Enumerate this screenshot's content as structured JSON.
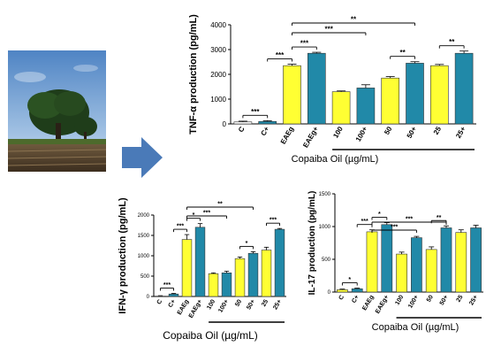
{
  "colors": {
    "yellow": "#ffff33",
    "teal": "#2189a8",
    "white_bar": "#ffffff",
    "arrow": "#4a7ab8",
    "bar_stroke": "#333333"
  },
  "icons": {
    "tree_photo": "tree-photo",
    "arrow": "right-arrow-icon"
  },
  "chart_data": [
    {
      "id": "tnf",
      "type": "bar",
      "ylabel": "TNF-α production (pg/mL)",
      "xlabel": "Copaiba Oil (µg/mL)",
      "ylim": [
        0,
        4000
      ],
      "yticks": [
        0,
        1000,
        2000,
        3000,
        4000
      ],
      "categories": [
        "C",
        "C+",
        "EAEg",
        "EAEg+",
        "100",
        "100+",
        "50",
        "50+",
        "25",
        "25+"
      ],
      "values": [
        80,
        100,
        2350,
        2850,
        1300,
        1450,
        1850,
        2450,
        2350,
        2850
      ],
      "errors": [
        30,
        30,
        60,
        40,
        30,
        130,
        60,
        60,
        50,
        90
      ],
      "colors": [
        "white_bar",
        "teal",
        "yellow",
        "teal",
        "yellow",
        "teal",
        "yellow",
        "teal",
        "yellow",
        "teal"
      ],
      "significance": [
        {
          "from": 0,
          "to": 1,
          "label": "***",
          "level": 0
        },
        {
          "from": 1,
          "to": 2,
          "label": "***",
          "level": 0
        },
        {
          "from": 2,
          "to": 3,
          "label": "***",
          "level": 0
        },
        {
          "from": 2,
          "to": 5,
          "label": "***",
          "level": 1
        },
        {
          "from": 2,
          "to": 7,
          "label": "**",
          "level": 2
        },
        {
          "from": 6,
          "to": 7,
          "label": "**",
          "level": 0
        },
        {
          "from": 8,
          "to": 9,
          "label": "**",
          "level": 0
        }
      ],
      "underline_from": 4
    },
    {
      "id": "ifn",
      "type": "bar",
      "ylabel": "IFN-γ production  (pg/mL)",
      "xlabel": "Copaiba Oil (µg/mL)",
      "ylim": [
        0,
        2000
      ],
      "yticks": [
        0,
        500,
        1000,
        1500,
        2000
      ],
      "categories": [
        "C",
        "C+",
        "EAEg",
        "EAEg+",
        "100",
        "100+",
        "50",
        "50+",
        "25",
        "25+"
      ],
      "values": [
        10,
        60,
        1400,
        1700,
        560,
        580,
        930,
        1060,
        1140,
        1650
      ],
      "errors": [
        10,
        15,
        120,
        90,
        20,
        40,
        40,
        40,
        70,
        20
      ],
      "colors": [
        "white_bar",
        "teal",
        "yellow",
        "teal",
        "yellow",
        "teal",
        "yellow",
        "teal",
        "yellow",
        "teal"
      ],
      "significance": [
        {
          "from": 0,
          "to": 1,
          "label": "***",
          "level": 0
        },
        {
          "from": 1,
          "to": 2,
          "label": "***",
          "level": 0
        },
        {
          "from": 2,
          "to": 3,
          "label": "*",
          "level": 0
        },
        {
          "from": 2,
          "to": 5,
          "label": "***",
          "level": 1
        },
        {
          "from": 2,
          "to": 7,
          "label": "**",
          "level": 2
        },
        {
          "from": 6,
          "to": 7,
          "label": "*",
          "level": 0
        },
        {
          "from": 8,
          "to": 9,
          "label": "***",
          "level": 0
        }
      ],
      "underline_from": 4
    },
    {
      "id": "il17",
      "type": "bar",
      "ylabel": "IL-17 production (pg/mL)",
      "xlabel": "Copaiba Oil (µg/mL)",
      "ylim": [
        0,
        1500
      ],
      "yticks": [
        0,
        500,
        1000,
        1500
      ],
      "categories": [
        "C",
        "C+",
        "EAEg",
        "EAEg+",
        "100",
        "100+",
        "50",
        "50+",
        "25",
        "25+"
      ],
      "values": [
        35,
        50,
        920,
        1030,
        580,
        830,
        650,
        980,
        910,
        980
      ],
      "errors": [
        10,
        10,
        30,
        30,
        30,
        20,
        40,
        30,
        40,
        40
      ],
      "colors": [
        "yellow",
        "teal",
        "yellow",
        "teal",
        "yellow",
        "teal",
        "yellow",
        "teal",
        "yellow",
        "teal"
      ],
      "significance": [
        {
          "from": 0,
          "to": 1,
          "label": "*",
          "level": 0
        },
        {
          "from": 1,
          "to": 2,
          "label": "***",
          "level": 0
        },
        {
          "from": 2,
          "to": 3,
          "label": "*",
          "level": 0
        },
        {
          "from": 2,
          "to": 5,
          "label": "***",
          "level": 1
        },
        {
          "from": 2,
          "to": 7,
          "label": "***",
          "level": 2
        },
        {
          "from": 6,
          "to": 7,
          "label": "**",
          "level": 0
        }
      ],
      "underline_from": 4
    }
  ]
}
